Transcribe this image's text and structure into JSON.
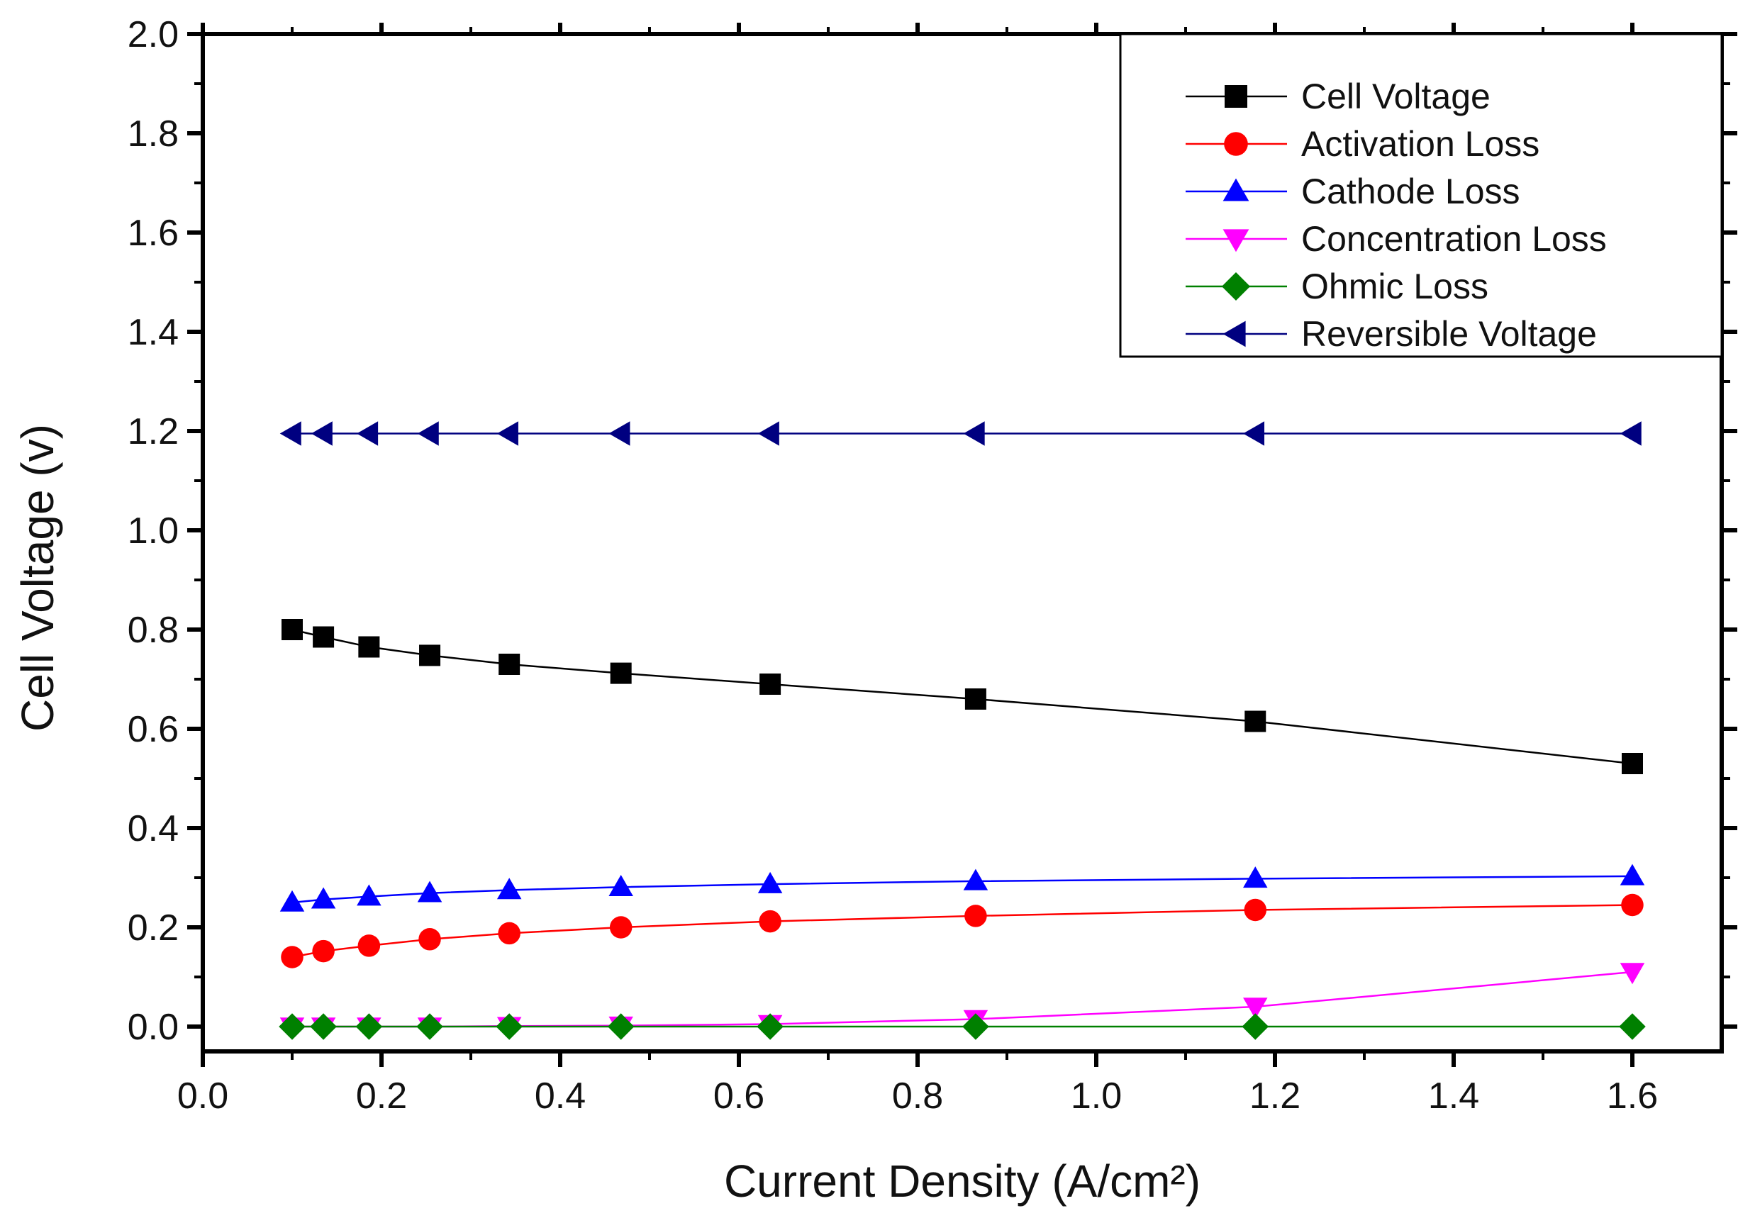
{
  "chart_data": {
    "type": "line",
    "title": "",
    "xlabel": "Current Density (A/cm²)",
    "ylabel": "Cell Voltage (v)",
    "xlim": [
      0.0,
      1.7
    ],
    "ylim": [
      -0.05,
      2.0
    ],
    "xticks": [
      "0.0",
      "0.2",
      "0.4",
      "0.6",
      "0.8",
      "1.0",
      "1.2",
      "1.4",
      "1.6"
    ],
    "yticks": [
      "0.0",
      "0.2",
      "0.4",
      "0.6",
      "0.8",
      "1.0",
      "1.2",
      "1.4",
      "1.6",
      "1.8",
      "2.0"
    ],
    "grid": false,
    "legend_position": "top-right",
    "x": [
      0.1,
      0.135,
      0.186,
      0.254,
      0.343,
      0.468,
      0.635,
      0.865,
      1.178,
      1.6
    ],
    "series": [
      {
        "name": "Cell Voltage",
        "color": "#000000",
        "marker": "square",
        "values": [
          0.8,
          0.785,
          0.765,
          0.748,
          0.73,
          0.712,
          0.69,
          0.66,
          0.615,
          0.53
        ]
      },
      {
        "name": "Activation Loss",
        "color": "#ff0000",
        "marker": "circle",
        "values": [
          0.14,
          0.152,
          0.163,
          0.176,
          0.188,
          0.2,
          0.212,
          0.223,
          0.235,
          0.245
        ]
      },
      {
        "name": "Cathode Loss",
        "color": "#0000ff",
        "marker": "triangle-up",
        "values": [
          0.25,
          0.256,
          0.262,
          0.269,
          0.275,
          0.281,
          0.287,
          0.293,
          0.298,
          0.303
        ]
      },
      {
        "name": "Concentration Loss",
        "color": "#ff00ff",
        "marker": "triangle-down",
        "values": [
          0.0,
          0.0,
          0.0,
          0.0,
          0.001,
          0.002,
          0.005,
          0.015,
          0.04,
          0.11
        ]
      },
      {
        "name": "Ohmic Loss",
        "color": "#008000",
        "marker": "diamond",
        "values": [
          0.0,
          0.0,
          0.0,
          0.0,
          0.0,
          0.0,
          0.0,
          0.0,
          0.0,
          0.0
        ]
      },
      {
        "name": "Reversible Voltage",
        "color": "#000080",
        "marker": "triangle-left",
        "values": [
          1.195,
          1.195,
          1.195,
          1.195,
          1.195,
          1.195,
          1.195,
          1.195,
          1.195,
          1.195
        ]
      }
    ]
  }
}
